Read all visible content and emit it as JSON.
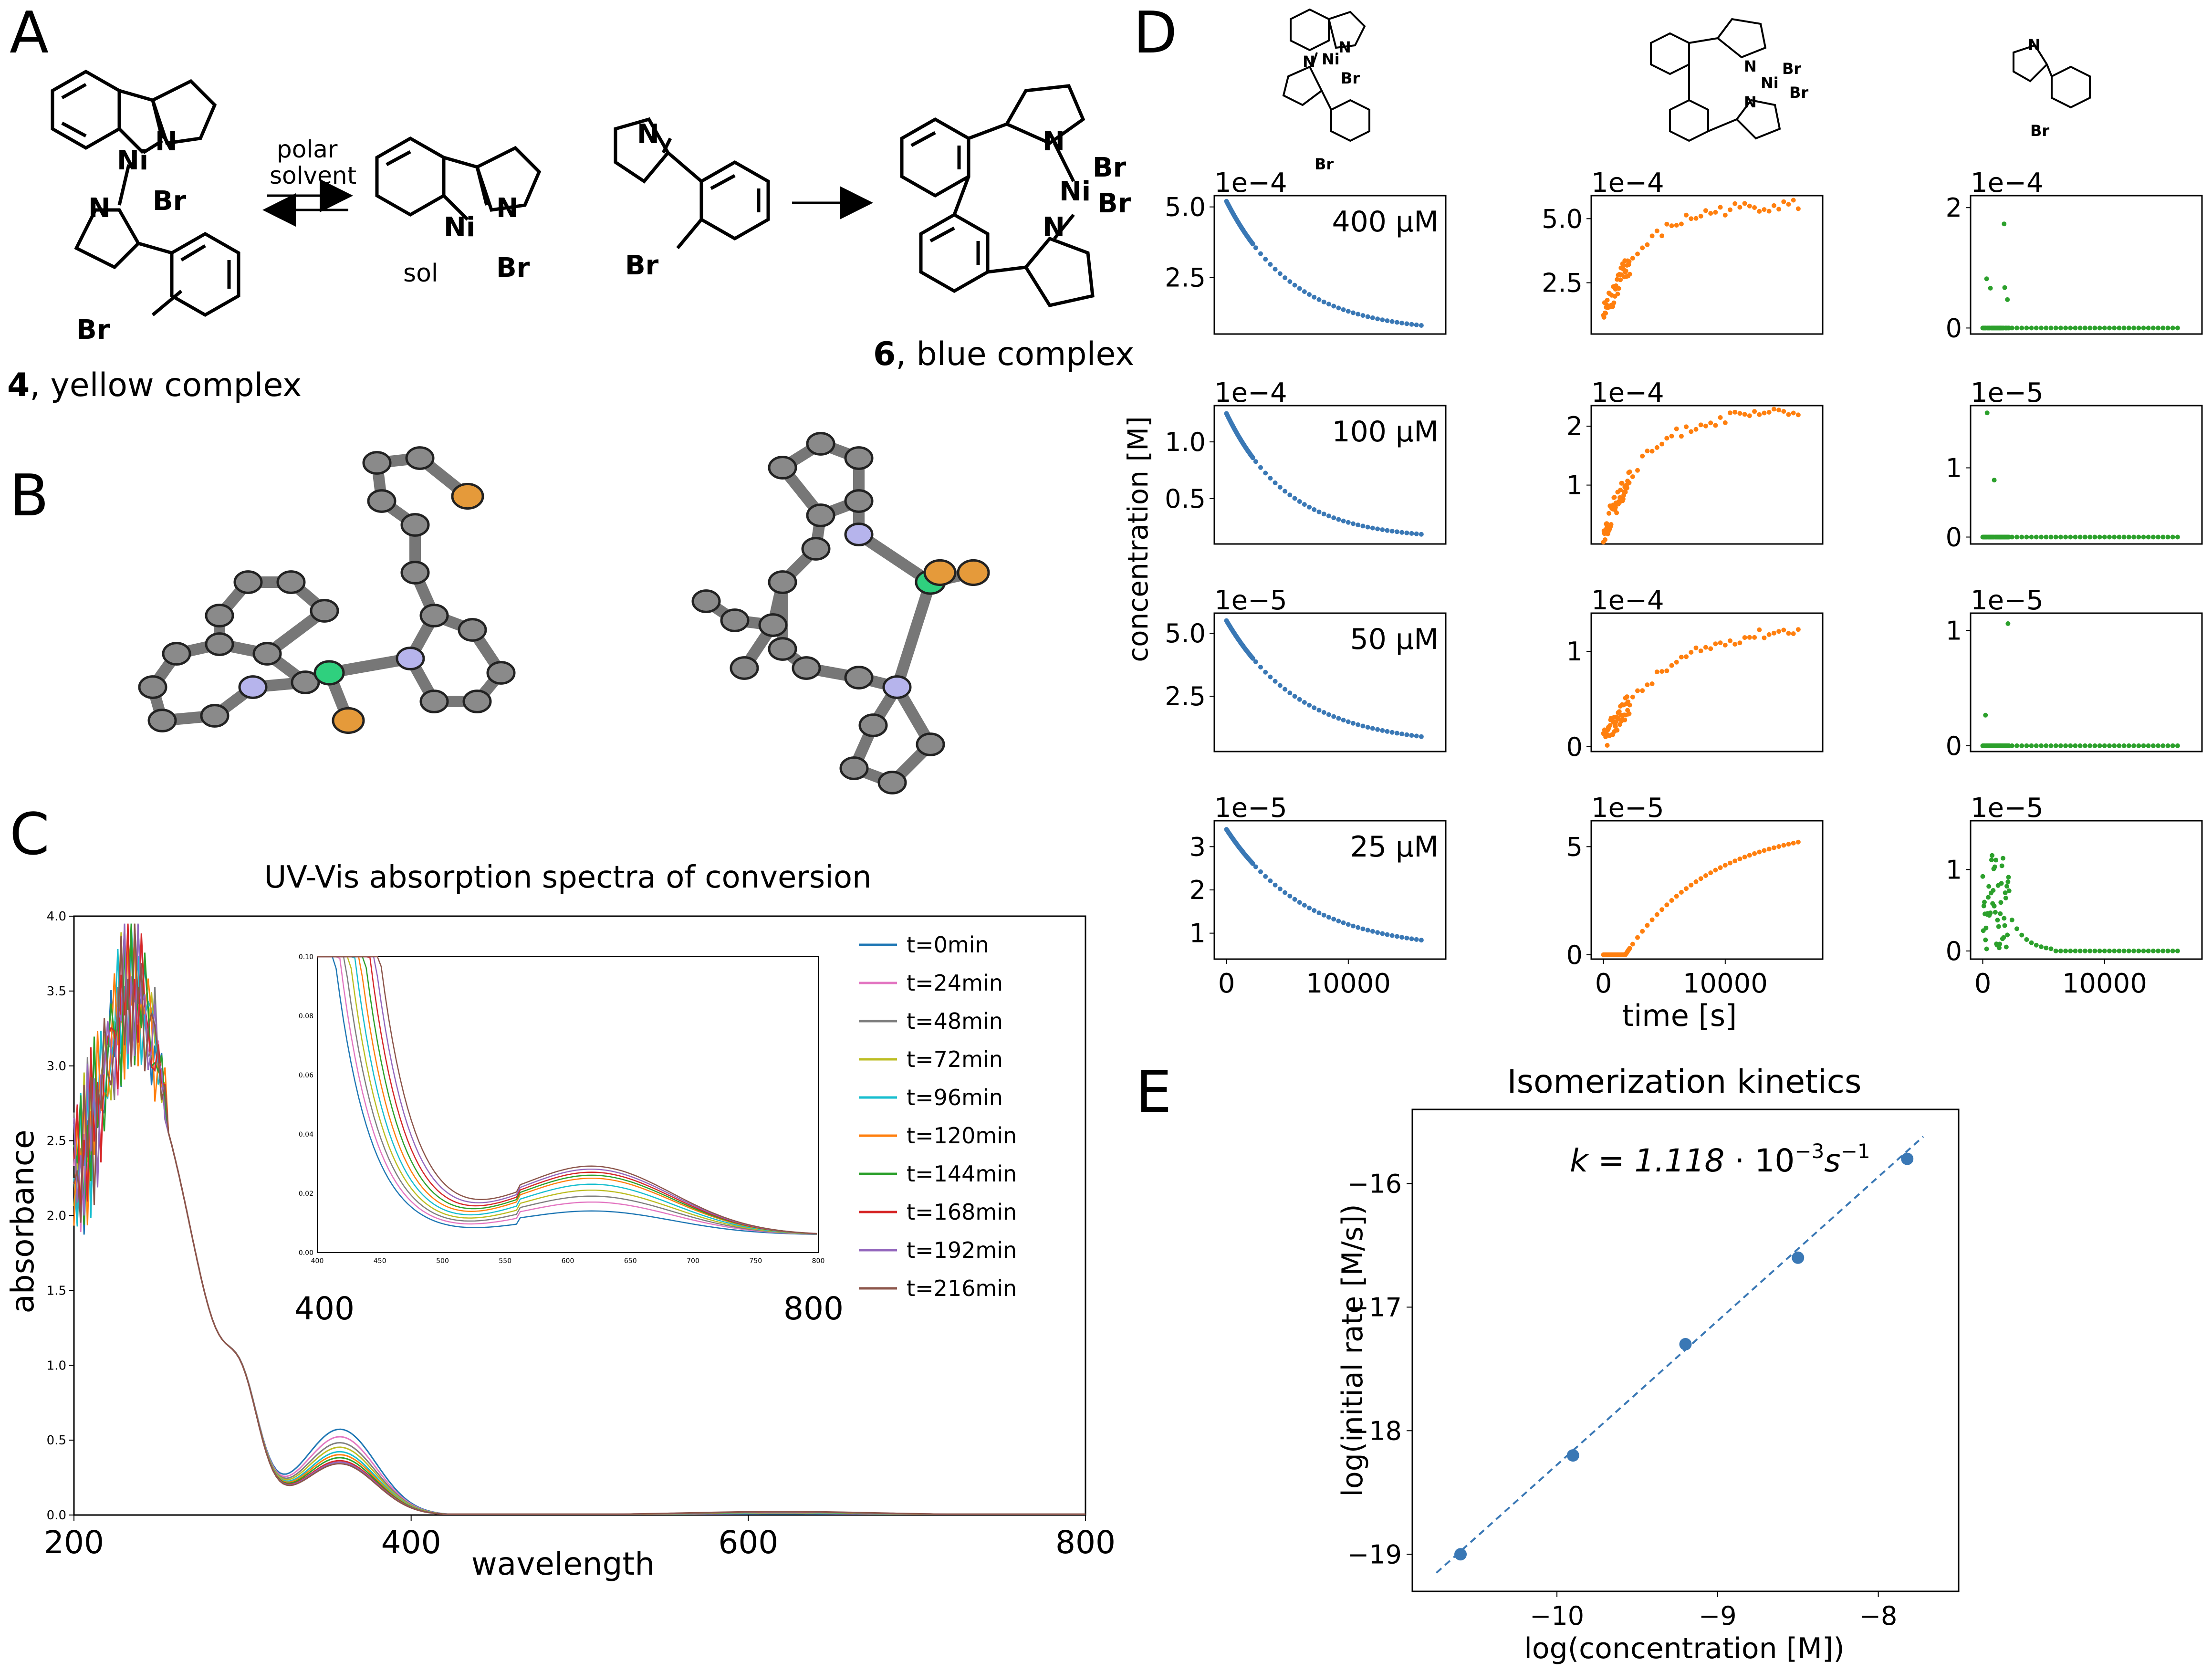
{
  "panel_letters": {
    "a": "A",
    "b": "B",
    "c": "C",
    "d": "D",
    "e": "E"
  },
  "scheme": {
    "arrow_label_line1": "polar",
    "arrow_label_line2": "solvent",
    "atoms": {
      "ni": "Ni",
      "br": "Br",
      "n": "N",
      "sol": "sol"
    },
    "complex4_number": "4",
    "complex4_text": ", yellow complex",
    "complex6_number": "6",
    "complex6_text": ", blue complex"
  },
  "colors": {
    "carbon": "#8a8a8a",
    "nitrogen": "#b6b4ec",
    "nickel": "#2fd07e",
    "bromine": "#e59a3a",
    "blue": "#3a78b5",
    "orange": "#ff7f0e",
    "green": "#2ca02c"
  },
  "chart_data": [
    {
      "id": "uvvis",
      "type": "line",
      "title": "UV-Vis absorption spectra of conversion",
      "xlabel": "wavelength",
      "ylabel": "absorbance",
      "xlim": [
        200,
        800
      ],
      "ylim": [
        0,
        4.0
      ],
      "x_ticks": [
        "200",
        "400",
        "600",
        "800"
      ],
      "y_ticks": [
        "0.0",
        "0.5",
        "1.0",
        "1.5",
        "2.0",
        "2.5",
        "3.0",
        "3.5",
        "4.0"
      ],
      "legend_position": "right",
      "series": [
        {
          "name": "t=0min",
          "color": "#1f77b4",
          "shoulder": 0.57,
          "visband": 0.008
        },
        {
          "name": "t=24min",
          "color": "#e377c2",
          "shoulder": 0.52,
          "visband": 0.011
        },
        {
          "name": "t=48min",
          "color": "#7f7f7f",
          "shoulder": 0.48,
          "visband": 0.013
        },
        {
          "name": "t=72min",
          "color": "#bcbd22",
          "shoulder": 0.45,
          "visband": 0.015
        },
        {
          "name": "t=96min",
          "color": "#17becf",
          "shoulder": 0.42,
          "visband": 0.017
        },
        {
          "name": "t=120min",
          "color": "#ff7f0e",
          "shoulder": 0.4,
          "visband": 0.019
        },
        {
          "name": "t=144min",
          "color": "#2ca02c",
          "shoulder": 0.38,
          "visband": 0.02
        },
        {
          "name": "t=168min",
          "color": "#d62728",
          "shoulder": 0.36,
          "visband": 0.021
        },
        {
          "name": "t=192min",
          "color": "#9467bd",
          "shoulder": 0.35,
          "visband": 0.022
        },
        {
          "name": "t=216min",
          "color": "#8c564b",
          "shoulder": 0.34,
          "visband": 0.023
        }
      ],
      "inset": {
        "xlim": [
          400,
          800
        ],
        "ylim": [
          0,
          0.1
        ],
        "x_ticks_small": [
          "400",
          "450",
          "500",
          "550",
          "600",
          "650",
          "700",
          "750",
          "800"
        ],
        "y_ticks_small": [
          "0.00",
          "0.02",
          "0.04",
          "0.06",
          "0.08",
          "0.10"
        ],
        "x_labels_large": [
          "400",
          "800"
        ]
      }
    },
    {
      "id": "kinetics",
      "type": "scatter",
      "ylabel": "concentration [M]",
      "xlabel": "time [s]",
      "xlim": [
        -1000,
        18000
      ],
      "x_ticks": [
        "0",
        "10000"
      ],
      "rows": [
        {
          "label": "400 μM",
          "panels": [
            {
              "exponent": "1e−4",
              "ylim": [
                0.5,
                5.4
              ],
              "yticks": [
                "2.5",
                "5.0"
              ],
              "kind": "decay",
              "c0": 5.2,
              "cinf": 0.55,
              "tau": 5500
            },
            {
              "exponent": "1e−4",
              "ylim": [
                0.5,
                5.9
              ],
              "yticks": [
                "2.5",
                "5.0"
              ],
              "kind": "growth",
              "c0": 1.2,
              "cinf": 5.6,
              "tau": 3500
            },
            {
              "exponent": "1e−4",
              "ylim": [
                -0.1,
                2.2
              ],
              "yticks": [
                "0",
                "2"
              ],
              "kind": "spike",
              "peak": 2.0
            }
          ]
        },
        {
          "label": "100 μM",
          "panels": [
            {
              "exponent": "1e−4",
              "ylim": [
                0.1,
                1.32
              ],
              "yticks": [
                "0.5",
                "1.0"
              ],
              "kind": "decay",
              "c0": 1.25,
              "cinf": 0.14,
              "tau": 5000
            },
            {
              "exponent": "1e−4",
              "ylim": [
                0.0,
                2.35
              ],
              "yticks": [
                "1",
                "2"
              ],
              "kind": "growth",
              "c0": 0.15,
              "cinf": 2.25,
              "tau": 3500
            },
            {
              "exponent": "1e−5",
              "ylim": [
                -0.1,
                1.9
              ],
              "yticks": [
                "0",
                "1"
              ],
              "kind": "spike",
              "peak": 1.8
            }
          ]
        },
        {
          "label": "50 μM",
          "panels": [
            {
              "exponent": "1e−5",
              "ylim": [
                0.3,
                5.8
              ],
              "yticks": [
                "2.5",
                "5.0"
              ],
              "kind": "decay",
              "c0": 5.5,
              "cinf": 0.55,
              "tau": 6000
            },
            {
              "exponent": "1e−4",
              "ylim": [
                -0.05,
                1.4
              ],
              "yticks": [
                "0",
                "1"
              ],
              "kind": "growth",
              "c0": 0.05,
              "cinf": 1.3,
              "tau": 5500
            },
            {
              "exponent": "1e−5",
              "ylim": [
                -0.05,
                1.15
              ],
              "yticks": [
                "0",
                "1"
              ],
              "kind": "spike",
              "peak": 1.1
            }
          ]
        },
        {
          "label": "25 μM",
          "panels": [
            {
              "exponent": "1e−5",
              "ylim": [
                0.4,
                3.6
              ],
              "yticks": [
                "1",
                "2",
                "3"
              ],
              "kind": "decay",
              "c0": 3.4,
              "cinf": 0.6,
              "tau": 6500
            },
            {
              "exponent": "1e−5",
              "ylim": [
                -0.2,
                6.2
              ],
              "yticks": [
                "0",
                "5"
              ],
              "kind": "lagged",
              "c0": 0,
              "cinf": 6.0,
              "tau": 7000,
              "lag": 1800
            },
            {
              "exponent": "1e−5",
              "ylim": [
                -0.1,
                1.6
              ],
              "yticks": [
                "0",
                "1"
              ],
              "kind": "hump",
              "peak": 1.5
            }
          ]
        }
      ]
    },
    {
      "id": "isomerization",
      "type": "scatter",
      "title": "Isomerization kinetics",
      "xlabel": "log(concentration [M])",
      "ylabel": "log(initial rate [M/s])",
      "xlim": [
        -10.9,
        -7.5
      ],
      "ylim": [
        -19.3,
        -15.4
      ],
      "x_ticks": [
        {
          "v": -10,
          "label": "−10"
        },
        {
          "v": -9,
          "label": "−9"
        },
        {
          "v": -8,
          "label": "−8"
        }
      ],
      "y_ticks": [
        {
          "v": -16,
          "label": "−16"
        },
        {
          "v": -17,
          "label": "−17"
        },
        {
          "v": -18,
          "label": "−18"
        },
        {
          "v": -19,
          "label": "−19"
        }
      ],
      "points": [
        [
          -10.6,
          -19.0
        ],
        [
          -9.9,
          -18.2
        ],
        [
          -9.2,
          -17.3
        ],
        [
          -8.5,
          -16.6
        ],
        [
          -7.82,
          -15.8
        ]
      ],
      "fit_line": [
        [
          -10.75,
          -19.15
        ],
        [
          -7.72,
          -15.62
        ]
      ],
      "annotation_k": "k = 1.118",
      "annotation_dot": "·",
      "annotation_base": "10",
      "annotation_exp": "−3",
      "annotation_unit": "s",
      "annotation_unit_exp": "−1"
    }
  ]
}
